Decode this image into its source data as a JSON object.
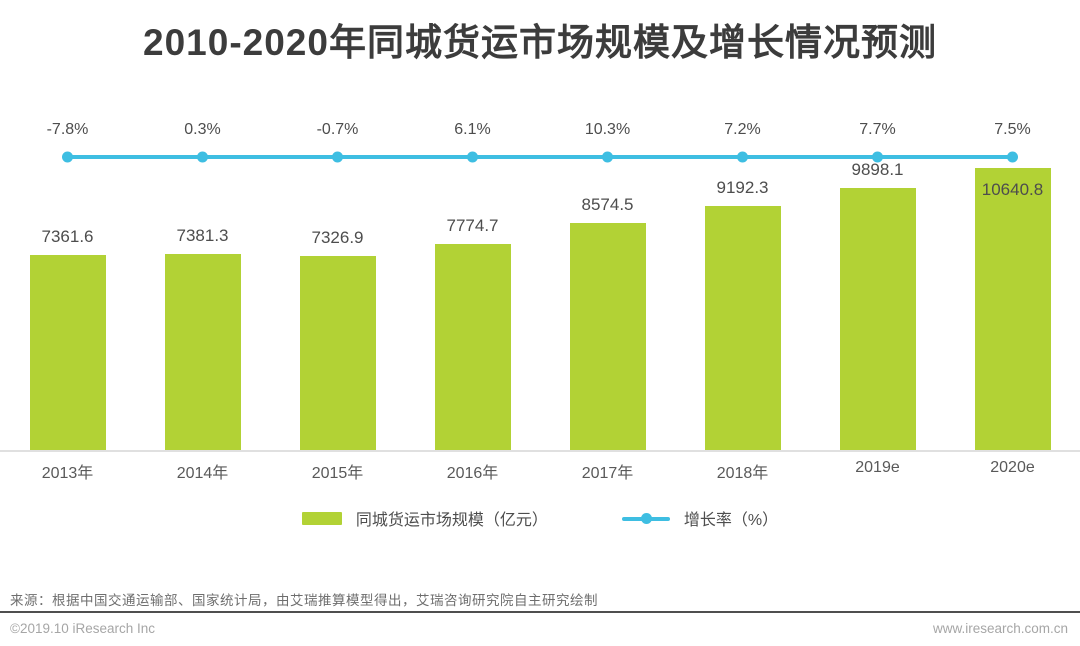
{
  "title": "2010-2020年同城货运市场规模及增长情况预测",
  "chart_data": {
    "type": "bar",
    "title": "2010-2020年同城货运市场规模及增长情况预测",
    "categories": [
      "2013年",
      "2014年",
      "2015年",
      "2016年",
      "2017年",
      "2018年",
      "2019e",
      "2020e"
    ],
    "series": [
      {
        "name": "同城货运市场规模（亿元）",
        "type": "bar",
        "values": [
          7361.6,
          7381.3,
          7326.9,
          7774.7,
          8574.5,
          9192.3,
          9898.1,
          10640.8
        ],
        "color": "#b2d235"
      },
      {
        "name": "增长率（%）",
        "type": "line",
        "values": [
          -7.8,
          0.3,
          -0.7,
          6.1,
          10.3,
          7.2,
          7.7,
          7.5
        ],
        "unit": "%",
        "color": "#3ebee2"
      }
    ],
    "ylim": [
      0,
      11000
    ],
    "grid": false,
    "legend_position": "bottom",
    "data_labels": true
  },
  "legend": {
    "bar_label": "同城货运市场规模（亿元）",
    "line_label": "增长率（%）"
  },
  "source_note": "来源：根据中国交通运输部、国家统计局，由艾瑞推算模型得出，艾瑞咨询研究院自主研究绘制",
  "footer": {
    "copyright": "©2019.10 iResearch Inc",
    "website": "www.iresearch.com.cn"
  },
  "colors": {
    "bar": "#b2d235",
    "line": "#3ebee2",
    "title_text": "#3c3c3c",
    "label_text": "#4d4d4d",
    "axis_text": "#595959",
    "source_text": "#6e6e6e",
    "footer_text": "#a6a6a6",
    "axis_line": "#e0e0e0",
    "divider": "#4f4f4f"
  }
}
